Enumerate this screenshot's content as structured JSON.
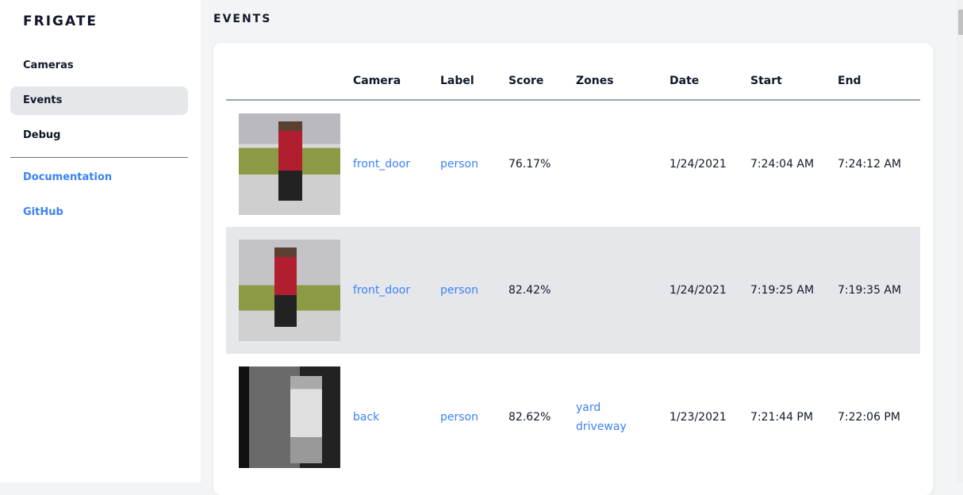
{
  "sidebar": {
    "brand": "FRIGATE",
    "items": [
      {
        "label": "Cameras"
      },
      {
        "label": "Events"
      },
      {
        "label": "Debug"
      }
    ],
    "links": [
      {
        "label": "Documentation"
      },
      {
        "label": "GitHub"
      }
    ]
  },
  "page": {
    "title": "EVENTS"
  },
  "table": {
    "headers": [
      "Camera",
      "Label",
      "Score",
      "Zones",
      "Date",
      "Start",
      "End"
    ],
    "rows": [
      {
        "camera": "front_door",
        "label": "person",
        "score": "76.17%",
        "zones": [
          "",
          ""
        ],
        "date": "1/24/2021",
        "start": "7:24:04 AM",
        "end": "7:24:12 AM"
      },
      {
        "camera": "front_door",
        "label": "person",
        "score": "82.42%",
        "zones": [
          "",
          ""
        ],
        "date": "1/24/2021",
        "start": "7:19:25 AM",
        "end": "7:19:35 AM"
      },
      {
        "camera": "back",
        "label": "person",
        "score": "82.62%",
        "zones": [
          "yard",
          "driveway"
        ],
        "date": "1/23/2021",
        "start": "7:21:44 PM",
        "end": "7:22:06 PM"
      }
    ]
  },
  "colors": {
    "accent": "#3b82f6",
    "active_bg": "#e5e7eb"
  }
}
